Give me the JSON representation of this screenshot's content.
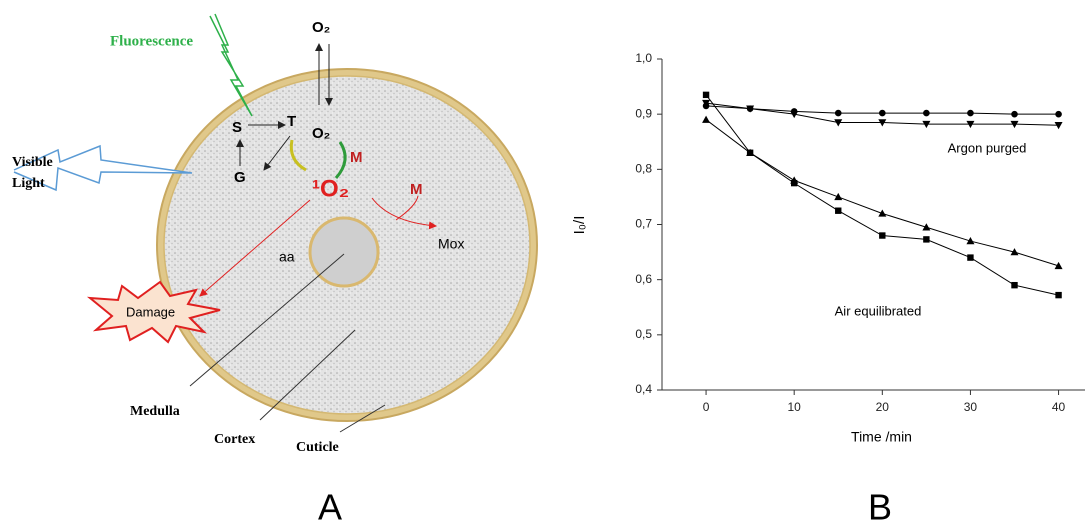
{
  "diagram": {
    "fluorescence": "Fluorescence",
    "oxygen_top": "O₂",
    "singlet": "S",
    "triplet": "T",
    "oxygen": "O₂",
    "ground": "G",
    "m1": "M",
    "singlet_oxygen": "¹O₂",
    "m2": "M",
    "mox": "Mox",
    "aa": "aa",
    "damage": "Damage",
    "visible_light": [
      "Visible",
      "Light"
    ],
    "medulla": "Medulla",
    "cortex": "Cortex",
    "cuticle": "Cuticle"
  },
  "panel_labels": [
    "A",
    "B"
  ],
  "chart_data": {
    "type": "line",
    "x_label": "Time /min",
    "y_label": "I₀/I",
    "x": [
      0,
      5,
      10,
      15,
      20,
      25,
      30,
      35,
      40
    ],
    "series": [
      {
        "marker": "circle",
        "color": "#000000",
        "values": [
          0.915,
          0.91,
          0.905,
          0.902,
          0.902,
          0.902,
          0.902,
          0.9,
          0.9
        ]
      },
      {
        "marker": "triangle-down",
        "color": "#000000",
        "values": [
          0.92,
          0.91,
          0.9,
          0.885,
          0.885,
          0.882,
          0.882,
          0.882,
          0.88
        ]
      },
      {
        "marker": "triangle-up",
        "color": "#000000",
        "values": [
          0.89,
          0.83,
          0.78,
          0.75,
          0.72,
          0.695,
          0.67,
          0.65,
          0.625
        ]
      },
      {
        "marker": "square",
        "color": "#000000",
        "values": [
          0.935,
          0.83,
          0.775,
          0.725,
          0.68,
          0.673,
          0.64,
          0.59,
          0.572
        ]
      }
    ],
    "annotations": [
      "Argon purged",
      "Air equilibrated"
    ],
    "xlim": [
      -5,
      43
    ],
    "ylim": [
      0.4,
      1.0
    ],
    "xticks": [
      0,
      10,
      20,
      30,
      40
    ],
    "yticks": [
      {
        "value": 0.4,
        "label": "0,4"
      },
      {
        "value": 0.5,
        "label": "0,5"
      },
      {
        "value": 0.6,
        "label": "0,6"
      },
      {
        "value": 0.7,
        "label": "0,7"
      },
      {
        "value": 0.8,
        "label": "0,8"
      },
      {
        "value": 0.9,
        "label": "0,9"
      },
      {
        "value": 1.0,
        "label": "1,0"
      }
    ]
  }
}
